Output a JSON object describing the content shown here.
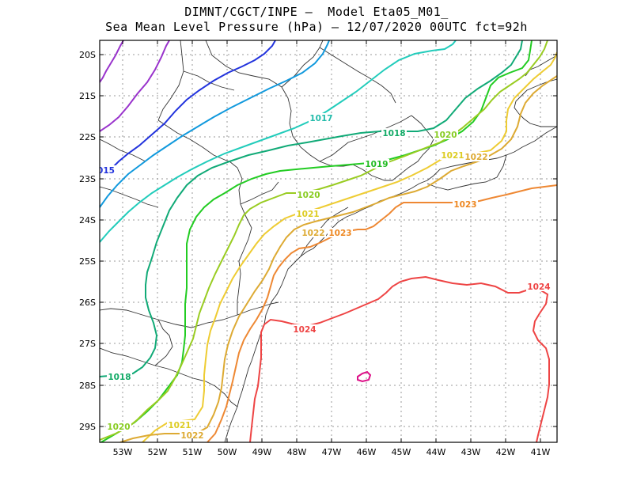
{
  "title": {
    "line1": "DIMNT/CGCT/INPE –  Model Eta05_M01_",
    "line2": "Sea Mean Level Pressure (hPa) – 12/07/2020 00UTC fct=92h"
  },
  "axes": {
    "lon_labels": [
      "53W",
      "52W",
      "51W",
      "50W",
      "49W",
      "48W",
      "47W",
      "46W",
      "45W",
      "44W",
      "43W",
      "42W",
      "41W"
    ],
    "lat_labels": [
      "20S",
      "21S",
      "22S",
      "23S",
      "24S",
      "25S",
      "26S",
      "27S",
      "28S",
      "29S"
    ]
  },
  "contour_labels": [
    {
      "id": "l1015",
      "text": "015",
      "color": "#2233dd"
    },
    {
      "id": "l1017a",
      "text": "1017",
      "color": "#22bbaa"
    },
    {
      "id": "l1018a",
      "text": "1018",
      "color": "#11aa66"
    },
    {
      "id": "l1018b",
      "text": "1018",
      "color": "#11aa66"
    },
    {
      "id": "l1019",
      "text": "1019",
      "color": "#22bb22"
    },
    {
      "id": "l1020a",
      "text": "1020",
      "color": "#88cc22"
    },
    {
      "id": "l1020b",
      "text": "1020",
      "color": "#88cc22"
    },
    {
      "id": "l1020c",
      "text": "1020",
      "color": "#88cc22"
    },
    {
      "id": "l1021a",
      "text": "1021",
      "color": "#ddcc22"
    },
    {
      "id": "l1021b",
      "text": "1021",
      "color": "#ddcc22"
    },
    {
      "id": "l1021c",
      "text": "1021",
      "color": "#ddcc22"
    },
    {
      "id": "l1022a",
      "text": "1022",
      "color": "#ddaa33"
    },
    {
      "id": "l1022b",
      "text": "1022",
      "color": "#ddaa33"
    },
    {
      "id": "l1022c",
      "text": "1022",
      "color": "#ddaa33"
    },
    {
      "id": "l1023a",
      "text": "1023",
      "color": "#ee8822"
    },
    {
      "id": "l1023b",
      "text": "1023",
      "color": "#ee8822"
    },
    {
      "id": "l1024a",
      "text": "1024",
      "color": "#ee4444"
    },
    {
      "id": "l1024b",
      "text": "1024",
      "color": "#ee4444"
    }
  ]
}
